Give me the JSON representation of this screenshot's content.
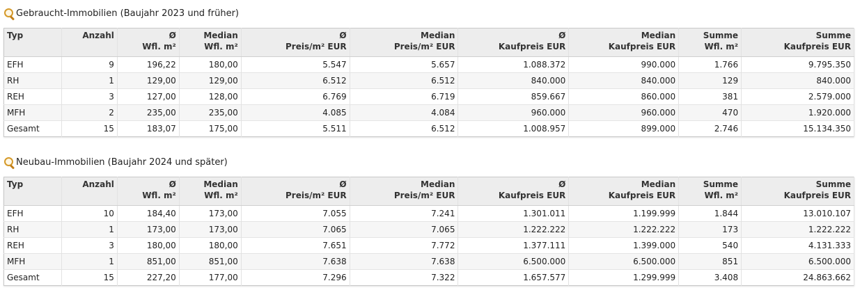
{
  "headers": [
    [
      "Typ",
      ""
    ],
    [
      "Anzahl",
      ""
    ],
    [
      "Ø",
      "Wfl. m²"
    ],
    [
      "Median",
      "Wfl. m²"
    ],
    [
      "Ø",
      "Preis/m² EUR"
    ],
    [
      "Median",
      "Preis/m² EUR"
    ],
    [
      "Ø",
      "Kaufpreis EUR"
    ],
    [
      "Median",
      "Kaufpreis EUR"
    ],
    [
      "Summe",
      "Wfl. m²"
    ],
    [
      "Summe",
      "Kaufpreis EUR"
    ]
  ],
  "sections": [
    {
      "title": "Gebraucht-Immobilien (Baujahr 2023 und früher)",
      "rows": [
        [
          "EFH",
          "9",
          "196,22",
          "180,00",
          "5.547",
          "5.657",
          "1.088.372",
          "990.000",
          "1.766",
          "9.795.350"
        ],
        [
          "RH",
          "1",
          "129,00",
          "129,00",
          "6.512",
          "6.512",
          "840.000",
          "840.000",
          "129",
          "840.000"
        ],
        [
          "REH",
          "3",
          "127,00",
          "128,00",
          "6.769",
          "6.719",
          "859.667",
          "860.000",
          "381",
          "2.579.000"
        ],
        [
          "MFH",
          "2",
          "235,00",
          "235,00",
          "4.085",
          "4.084",
          "960.000",
          "960.000",
          "470",
          "1.920.000"
        ],
        [
          "Gesamt",
          "15",
          "183,07",
          "175,00",
          "5.511",
          "6.512",
          "1.008.957",
          "899.000",
          "2.746",
          "15.134.350"
        ]
      ]
    },
    {
      "title": "Neubau-Immobilien (Baujahr 2024 und später)",
      "rows": [
        [
          "EFH",
          "10",
          "184,40",
          "173,00",
          "7.055",
          "7.241",
          "1.301.011",
          "1.199.999",
          "1.844",
          "13.010.107"
        ],
        [
          "RH",
          "1",
          "173,00",
          "173,00",
          "7.065",
          "7.065",
          "1.222.222",
          "1.222.222",
          "173",
          "1.222.222"
        ],
        [
          "REH",
          "3",
          "180,00",
          "180,00",
          "7.651",
          "7.772",
          "1.377.111",
          "1.399.000",
          "540",
          "4.131.333"
        ],
        [
          "MFH",
          "1",
          "851,00",
          "851,00",
          "7.638",
          "7.638",
          "6.500.000",
          "6.500.000",
          "851",
          "6.500.000"
        ],
        [
          "Gesamt",
          "15",
          "227,20",
          "177,00",
          "7.296",
          "7.322",
          "1.657.577",
          "1.299.999",
          "3.408",
          "24.863.662"
        ]
      ]
    }
  ]
}
